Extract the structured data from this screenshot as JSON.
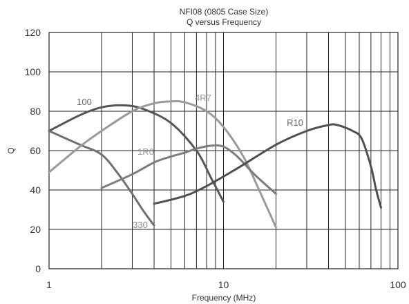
{
  "chart_data": {
    "type": "line",
    "title": "NFI08 (0805 Case Size)",
    "subtitle": "Q versus Frequency",
    "xlabel": "Frequency (MHz)",
    "ylabel": "Q",
    "xscale": "log",
    "xlim": [
      1,
      100
    ],
    "ylim": [
      0,
      120
    ],
    "xticks": [
      1,
      10,
      100
    ],
    "xtick_labels": [
      "1",
      "10",
      "100"
    ],
    "yticks": [
      0,
      20,
      40,
      60,
      80,
      100,
      120
    ],
    "ytick_labels": [
      "0",
      "20",
      "40",
      "60",
      "80",
      "100",
      "120"
    ],
    "grid": true,
    "series": [
      {
        "name": "100",
        "color": "#555555",
        "points": [
          [
            1,
            70
          ],
          [
            1.5,
            78
          ],
          [
            2,
            82
          ],
          [
            2.7,
            83
          ],
          [
            3.5,
            81
          ],
          [
            5,
            74
          ],
          [
            7,
            60
          ],
          [
            8.5,
            46
          ],
          [
            10,
            34
          ]
        ]
      },
      {
        "name": "330",
        "color": "#707070",
        "points": [
          [
            1,
            70
          ],
          [
            1.5,
            63
          ],
          [
            2,
            58
          ],
          [
            2.5,
            48
          ],
          [
            3,
            38
          ],
          [
            3.5,
            29
          ],
          [
            4,
            22
          ]
        ]
      },
      {
        "name": "4R7",
        "color": "#9a9a9a",
        "points": [
          [
            1,
            49
          ],
          [
            1.5,
            62
          ],
          [
            2,
            70
          ],
          [
            3,
            80
          ],
          [
            4,
            84
          ],
          [
            5,
            85
          ],
          [
            6,
            84.5
          ],
          [
            8,
            80
          ],
          [
            10,
            72
          ],
          [
            13,
            57
          ],
          [
            16,
            40
          ],
          [
            20,
            21
          ]
        ]
      },
      {
        "name": "1R0",
        "color": "#7c7c7c",
        "points": [
          [
            2,
            41
          ],
          [
            3,
            48
          ],
          [
            4,
            54
          ],
          [
            5,
            57
          ],
          [
            6,
            59
          ],
          [
            7,
            61
          ],
          [
            8.5,
            62.5
          ],
          [
            10,
            62
          ],
          [
            12,
            57
          ],
          [
            15,
            48
          ],
          [
            20,
            38
          ]
        ]
      },
      {
        "name": "R10",
        "color": "#4f4f4f",
        "points": [
          [
            4,
            33
          ],
          [
            6,
            37
          ],
          [
            8,
            42
          ],
          [
            12,
            51
          ],
          [
            20,
            63
          ],
          [
            30,
            70
          ],
          [
            40,
            73
          ],
          [
            45,
            73
          ],
          [
            55,
            70
          ],
          [
            62,
            66
          ],
          [
            70,
            52
          ],
          [
            75,
            40
          ],
          [
            80,
            31
          ]
        ]
      }
    ],
    "series_label_colors": {
      "100": "#666666",
      "330": "#888888",
      "4R7": "#9a9a9a",
      "1R0": "#9a9a9a",
      "R10": "#666666"
    }
  }
}
